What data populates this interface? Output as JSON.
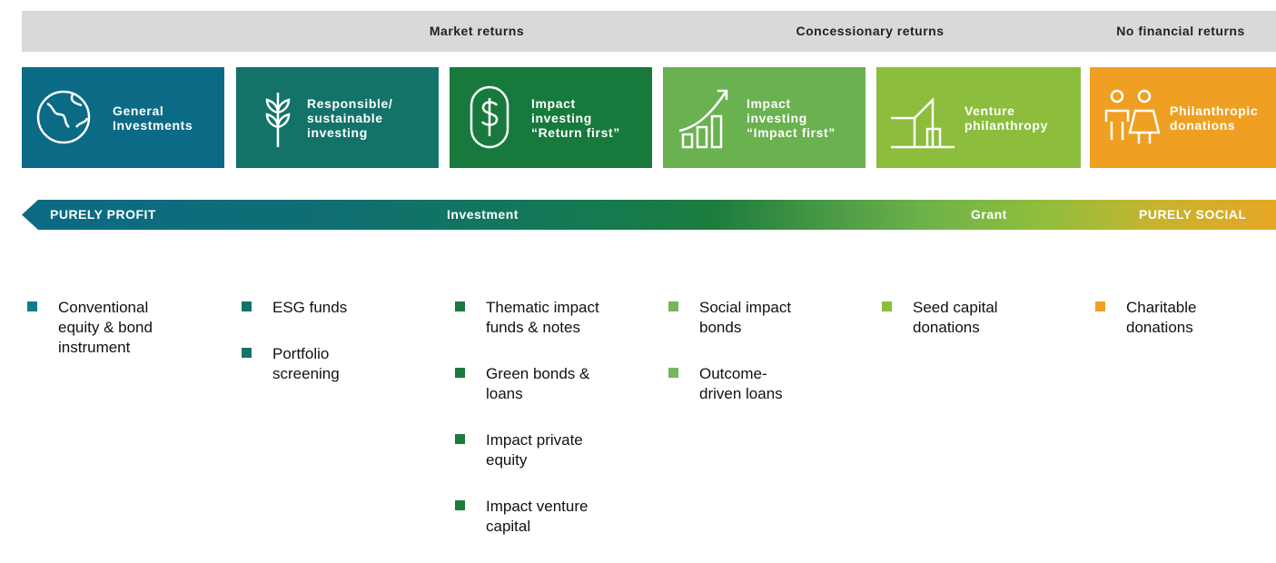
{
  "header": {
    "groups": [
      "Market returns",
      "Concessionary returns",
      "No financial returns"
    ]
  },
  "categories": [
    {
      "label": [
        "General",
        "Investments"
      ],
      "items": [
        [
          "Conventional",
          "equity & bond",
          "instrument"
        ]
      ]
    },
    {
      "label": [
        "Responsible/",
        "sustainable",
        "investing"
      ],
      "items": [
        [
          "ESG funds"
        ],
        [
          "Portfolio",
          "screening"
        ]
      ]
    },
    {
      "label": [
        "Impact",
        "investing",
        "“Return first”"
      ],
      "items": [
        [
          "Thematic impact",
          "funds & notes"
        ],
        [
          "Green bonds &",
          "loans"
        ],
        [
          "Impact private",
          "equity"
        ],
        [
          "Impact venture",
          "capital"
        ]
      ]
    },
    {
      "label": [
        "Impact",
        "investing",
        "“Impact first”"
      ],
      "items": [
        [
          "Social impact",
          "bonds"
        ],
        [
          "Outcome-",
          "driven loans"
        ]
      ]
    },
    {
      "label": [
        "Venture",
        "philanthropy"
      ],
      "items": [
        [
          "Seed capital",
          "donations"
        ]
      ]
    },
    {
      "label": [
        "Philanthropic",
        "donations"
      ],
      "items": [
        [
          "Charitable",
          "donations"
        ]
      ]
    }
  ],
  "spectrum": {
    "left": "PURELY PROFIT",
    "middle": "Investment",
    "grant": "Grant",
    "right": "PURELY SOCIAL"
  }
}
